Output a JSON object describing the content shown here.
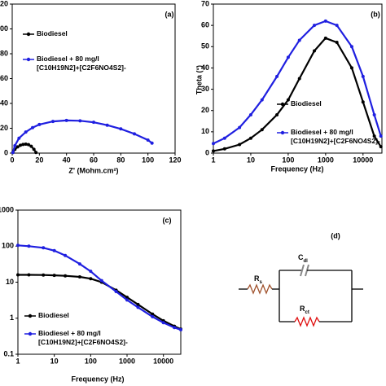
{
  "chart_data": [
    {
      "type": "line",
      "annotation": "(a)",
      "x_label": "Z' (Mohm.cm²)",
      "xscale": "linear",
      "yscale": "linear",
      "xlim": [
        0,
        120
      ],
      "xticks": [
        0,
        20,
        40,
        60,
        80,
        100,
        120
      ],
      "ylim": [
        0,
        120
      ],
      "yticks": [
        0,
        20,
        40,
        60,
        80,
        100,
        120
      ],
      "series": [
        {
          "name": "Biodiesel",
          "color": "#000000",
          "x": [
            0.5,
            2,
            4,
            6,
            8,
            10,
            12,
            14,
            16,
            17.5
          ],
          "values": [
            0.5,
            3,
            5,
            6.3,
            7,
            7.2,
            6.8,
            5.5,
            3,
            0.5
          ]
        },
        {
          "name": "Biodiesel + 80 mg/l [C10H19N2]+[C2F6NO4S2]-",
          "color": "#1f1fe0",
          "x": [
            0.5,
            2,
            5,
            10,
            15,
            20,
            30,
            40,
            50,
            60,
            70,
            80,
            90,
            100,
            103
          ],
          "values": [
            0.5,
            6,
            12,
            17,
            20.5,
            23,
            25.5,
            26.3,
            26,
            24.8,
            22.5,
            19.5,
            15.5,
            10.5,
            8
          ]
        }
      ]
    },
    {
      "type": "line",
      "annotation": "(b)",
      "x_label": "Frequency (Hz)",
      "y_label": "Theta (°)",
      "xscale": "log",
      "yscale": "linear",
      "xlim": [
        1,
        32000
      ],
      "xticks": [
        1,
        10,
        100,
        1000,
        10000
      ],
      "ylim": [
        0,
        70
      ],
      "yticks": [
        0,
        10,
        20,
        30,
        40,
        50,
        60,
        70
      ],
      "series": [
        {
          "name": "Biodiesel",
          "color": "#000000",
          "x": [
            1,
            2,
            5,
            10,
            20,
            50,
            100,
            200,
            500,
            1000,
            2000,
            5000,
            10000,
            20000,
            30000
          ],
          "values": [
            1,
            2,
            4,
            7,
            11,
            18,
            25,
            35,
            48,
            54,
            52,
            40,
            24,
            8,
            3
          ]
        },
        {
          "name": "Biodiesel + 80 mg/l [C10H19N2]+[C2F6NO4S2]-",
          "color": "#1f1fe0",
          "x": [
            1,
            2,
            5,
            10,
            20,
            50,
            100,
            200,
            500,
            1000,
            2000,
            5000,
            10000,
            20000,
            30000
          ],
          "values": [
            4.5,
            7,
            12,
            18,
            25,
            36,
            45,
            53,
            60,
            62,
            60,
            50,
            36,
            18,
            8
          ]
        }
      ]
    },
    {
      "type": "line",
      "annotation": "(c)",
      "x_label": "Frequency (Hz)",
      "xscale": "log",
      "yscale": "log",
      "xlim": [
        1,
        30000
      ],
      "xticks": [
        1,
        10,
        100,
        1000,
        10000
      ],
      "ylim": [
        0.1,
        1000
      ],
      "yticks": [
        0.1,
        1,
        10,
        100,
        1000
      ],
      "series": [
        {
          "name": "Biodiesel",
          "color": "#000000",
          "x": [
            1,
            2,
            5,
            10,
            20,
            50,
            100,
            200,
            500,
            1000,
            2000,
            5000,
            10000,
            20000,
            30000
          ],
          "values": [
            16,
            16,
            15.8,
            15.5,
            15,
            14,
            12.5,
            10,
            6,
            3.8,
            2.4,
            1.3,
            0.85,
            0.6,
            0.5
          ]
        },
        {
          "name": "Biodiesel + 80 mg/l [C10H19N2]+[C2F6NO4S2]-",
          "color": "#1f1fe0",
          "x": [
            1,
            2,
            5,
            10,
            20,
            50,
            100,
            200,
            500,
            1000,
            2000,
            5000,
            10000,
            20000,
            30000
          ],
          "values": [
            105,
            100,
            90,
            75,
            55,
            32,
            20,
            11,
            5.5,
            3.2,
            2,
            1.1,
            0.75,
            0.55,
            0.48
          ]
        }
      ]
    }
  ],
  "diagram": {
    "label": "(d)",
    "rs": {
      "symbol": "R",
      "sub": "s"
    },
    "cdl": {
      "symbol": "C",
      "sub": "dl"
    },
    "rct": {
      "symbol": "R",
      "sub": "ct"
    }
  }
}
